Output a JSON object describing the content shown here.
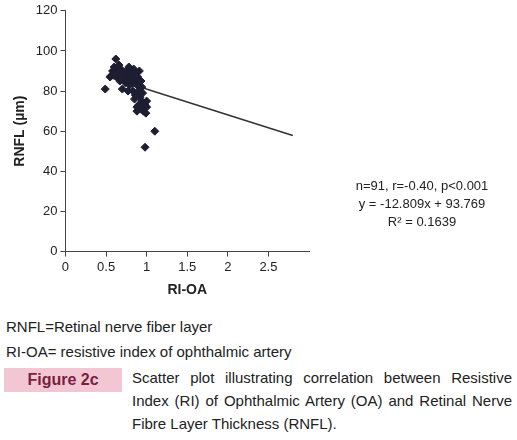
{
  "chart_data": {
    "type": "scatter",
    "xlabel": "RI-OA",
    "ylabel": "RNFL (µm)",
    "x": [
      0.49,
      0.55,
      0.57,
      0.58,
      0.6,
      0.6,
      0.62,
      0.63,
      0.64,
      0.65,
      0.66,
      0.67,
      0.68,
      0.68,
      0.7,
      0.7,
      0.72,
      0.73,
      0.74,
      0.75,
      0.76,
      0.77,
      0.78,
      0.78,
      0.8,
      0.8,
      0.81,
      0.82,
      0.83,
      0.83,
      0.84,
      0.85,
      0.85,
      0.86,
      0.87,
      0.88,
      0.88,
      0.89,
      0.9,
      0.9,
      0.9,
      0.91,
      0.92,
      0.92,
      0.93,
      0.94,
      0.95,
      0.95,
      0.96,
      0.97,
      0.98,
      0.98,
      0.99,
      1.0,
      1.0,
      1.1,
      0.88,
      0.86,
      0.94,
      0.79
    ],
    "values": [
      81,
      87,
      88,
      90,
      89,
      92,
      96,
      87,
      91,
      89,
      93,
      85,
      88,
      91,
      90,
      81,
      88,
      86,
      84,
      90,
      86,
      80,
      88,
      92,
      90,
      85,
      87,
      89,
      84,
      80,
      91,
      88,
      76,
      86,
      89,
      83,
      70,
      87,
      84,
      80,
      73,
      90,
      77,
      71,
      85,
      75,
      72,
      79,
      70,
      74,
      73,
      52,
      69,
      72,
      75,
      60,
      72,
      78,
      82,
      83
    ],
    "fit": {
      "x": [
        0.5,
        2.8
      ],
      "values": [
        87.36,
        57.9
      ]
    },
    "annotations": [
      "n=91, r=-0.40, p<0.001",
      "y = -12.809x + 93.769",
      "R² = 0.1639"
    ],
    "xlim": [
      0,
      3
    ],
    "ylim": [
      0,
      120
    ],
    "xticks": [
      0,
      0.5,
      1,
      1.5,
      2,
      2.5
    ],
    "yticks": [
      0,
      20,
      40,
      60,
      80,
      100,
      120
    ],
    "grid": false,
    "color": "#1e1e32",
    "marker": "diamond"
  },
  "caption": {
    "notes": [
      "RNFL=Retinal nerve fiber layer",
      "RI-OA= resistive index of ophthalmic artery"
    ],
    "figure_label": "Figure 2c",
    "text": "Scatter plot illustrating correlation between Resistive Index (RI) of Ophthalmic Artery (OA) and Retinal Nerve Fibre Layer Thickness (RNFL)."
  }
}
